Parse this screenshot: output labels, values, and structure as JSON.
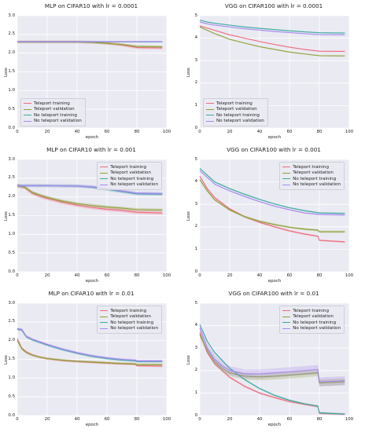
{
  "chart_data": [
    {
      "type": "line",
      "title": "MLP on CIFAR10 with lr = 0.0001",
      "xlabel": "epoch",
      "ylabel": "Loss",
      "xlim": [
        0,
        100
      ],
      "ylim": [
        0,
        3.0
      ],
      "xticks": [
        "0",
        "20",
        "40",
        "60",
        "80",
        "100"
      ],
      "yticks": [
        "0.0",
        "0.5",
        "1.0",
        "1.5",
        "2.0",
        "2.5",
        "3.0"
      ],
      "grid": true,
      "legend_position": "bottom-left",
      "series": [
        {
          "name": "Teleport training",
          "color": "#ef6b80",
          "x": [
            0,
            10,
            20,
            30,
            40,
            50,
            60,
            70,
            80,
            97
          ],
          "y": [
            2.3,
            2.3,
            2.3,
            2.3,
            2.3,
            2.29,
            2.27,
            2.22,
            2.15,
            2.14
          ],
          "band": 0.04
        },
        {
          "name": "Teleport validation",
          "color": "#8ea23a",
          "x": [
            0,
            10,
            20,
            30,
            40,
            50,
            60,
            70,
            80,
            97
          ],
          "y": [
            2.3,
            2.3,
            2.3,
            2.3,
            2.3,
            2.29,
            2.26,
            2.23,
            2.18,
            2.17
          ],
          "band": 0.03
        },
        {
          "name": "No teleport training",
          "color": "#3aa9a0",
          "x": [
            0,
            20,
            40,
            60,
            80,
            97
          ],
          "y": [
            2.3,
            2.3,
            2.3,
            2.3,
            2.3,
            2.3
          ],
          "band": 0.01
        },
        {
          "name": "No teleport validation",
          "color": "#a989ef",
          "x": [
            0,
            20,
            40,
            60,
            80,
            97
          ],
          "y": [
            2.31,
            2.31,
            2.31,
            2.31,
            2.31,
            2.31
          ],
          "band": 0.01
        }
      ]
    },
    {
      "type": "line",
      "title": "VGG on CIFAR100 with lr = 0.0001",
      "xlabel": "epoch",
      "ylabel": "Loss",
      "xlim": [
        0,
        100
      ],
      "ylim": [
        0,
        5
      ],
      "xticks": [
        "0",
        "20",
        "40",
        "60",
        "80",
        "100"
      ],
      "yticks": [
        "0",
        "1",
        "2",
        "3",
        "4",
        "5"
      ],
      "grid": true,
      "legend_position": "bottom-left",
      "series": [
        {
          "name": "Teleport training",
          "color": "#ef6b80",
          "x": [
            0,
            5,
            10,
            20,
            30,
            40,
            50,
            60,
            70,
            80,
            97
          ],
          "y": [
            4.55,
            4.45,
            4.35,
            4.15,
            4.0,
            3.85,
            3.72,
            3.6,
            3.5,
            3.42,
            3.41
          ],
          "band": 0.02
        },
        {
          "name": "Teleport validation",
          "color": "#8ea23a",
          "x": [
            0,
            5,
            10,
            20,
            30,
            40,
            50,
            60,
            70,
            80,
            97
          ],
          "y": [
            4.5,
            4.35,
            4.2,
            3.95,
            3.78,
            3.62,
            3.5,
            3.38,
            3.3,
            3.22,
            3.21
          ],
          "band": 0.02
        },
        {
          "name": "No teleport training",
          "color": "#3aa9a0",
          "x": [
            0,
            5,
            10,
            20,
            30,
            40,
            50,
            60,
            70,
            80,
            97
          ],
          "y": [
            4.8,
            4.72,
            4.66,
            4.58,
            4.5,
            4.44,
            4.38,
            4.33,
            4.28,
            4.24,
            4.23
          ],
          "band": 0.02
        },
        {
          "name": "No teleport validation",
          "color": "#a989ef",
          "x": [
            0,
            5,
            10,
            20,
            30,
            40,
            50,
            60,
            70,
            80,
            97
          ],
          "y": [
            4.72,
            4.64,
            4.58,
            4.5,
            4.42,
            4.36,
            4.3,
            4.25,
            4.2,
            4.16,
            4.15
          ],
          "band": 0.02
        }
      ]
    },
    {
      "type": "line",
      "title": "MLP on CIFAR10 with lr = 0.001",
      "xlabel": "epoch",
      "ylabel": "Loss",
      "xlim": [
        0,
        100
      ],
      "ylim": [
        0,
        3.0
      ],
      "xticks": [
        "0",
        "20",
        "40",
        "60",
        "80",
        "100"
      ],
      "yticks": [
        "0.0",
        "0.5",
        "1.0",
        "1.5",
        "2.0",
        "2.5",
        "3.0"
      ],
      "grid": true,
      "legend_position": "top-right",
      "series": [
        {
          "name": "Teleport training",
          "color": "#ef6b80",
          "x": [
            0,
            5,
            10,
            15,
            20,
            30,
            40,
            50,
            60,
            70,
            80,
            97
          ],
          "y": [
            2.3,
            2.25,
            2.1,
            2.02,
            1.96,
            1.86,
            1.78,
            1.72,
            1.67,
            1.64,
            1.59,
            1.57
          ],
          "band": 0.05
        },
        {
          "name": "Teleport validation",
          "color": "#8ea23a",
          "x": [
            0,
            5,
            10,
            15,
            20,
            30,
            40,
            50,
            60,
            70,
            80,
            97
          ],
          "y": [
            2.3,
            2.26,
            2.12,
            2.05,
            1.99,
            1.89,
            1.82,
            1.77,
            1.73,
            1.7,
            1.66,
            1.65
          ],
          "band": 0.04
        },
        {
          "name": "No teleport training",
          "color": "#3aa9a0",
          "x": [
            0,
            20,
            40,
            50,
            60,
            70,
            80,
            97
          ],
          "y": [
            2.3,
            2.3,
            2.29,
            2.26,
            2.2,
            2.14,
            2.08,
            2.07
          ],
          "band": 0.04
        },
        {
          "name": "No teleport validation",
          "color": "#a989ef",
          "x": [
            0,
            20,
            40,
            50,
            60,
            70,
            80,
            97
          ],
          "y": [
            2.3,
            2.3,
            2.29,
            2.27,
            2.22,
            2.16,
            2.1,
            2.09
          ],
          "band": 0.04
        }
      ]
    },
    {
      "type": "line",
      "title": "VGG on CIFAR100 with lr = 0.001",
      "xlabel": "epoch",
      "ylabel": "Loss",
      "xlim": [
        0,
        100
      ],
      "ylim": [
        0,
        5
      ],
      "xticks": [
        "0",
        "20",
        "40",
        "60",
        "80",
        "100"
      ],
      "yticks": [
        "0",
        "1",
        "2",
        "3",
        "4",
        "5"
      ],
      "grid": true,
      "legend_position": "top-right",
      "series": [
        {
          "name": "Teleport training",
          "color": "#ef6b80",
          "x": [
            0,
            5,
            10,
            20,
            30,
            40,
            50,
            60,
            70,
            79,
            80,
            97
          ],
          "y": [
            4.25,
            3.7,
            3.3,
            2.8,
            2.45,
            2.2,
            2.0,
            1.82,
            1.68,
            1.58,
            1.4,
            1.33
          ],
          "band": 0.04
        },
        {
          "name": "Teleport validation",
          "color": "#8ea23a",
          "x": [
            0,
            5,
            10,
            20,
            30,
            40,
            50,
            60,
            70,
            79,
            80,
            97
          ],
          "y": [
            4.1,
            3.6,
            3.2,
            2.75,
            2.45,
            2.25,
            2.1,
            1.98,
            1.9,
            1.85,
            1.78,
            1.78
          ],
          "band": 0.05
        },
        {
          "name": "No teleport training",
          "color": "#3aa9a0",
          "x": [
            0,
            5,
            10,
            20,
            30,
            40,
            50,
            60,
            70,
            80,
            97
          ],
          "y": [
            4.6,
            4.3,
            4.0,
            3.7,
            3.45,
            3.22,
            3.02,
            2.85,
            2.72,
            2.62,
            2.6
          ],
          "band": 0.03
        },
        {
          "name": "No teleport validation",
          "color": "#a989ef",
          "x": [
            0,
            5,
            10,
            20,
            30,
            40,
            50,
            60,
            70,
            80,
            97
          ],
          "y": [
            4.5,
            4.2,
            3.9,
            3.6,
            3.35,
            3.12,
            2.92,
            2.76,
            2.62,
            2.55,
            2.53
          ],
          "band": 0.03
        }
      ]
    },
    {
      "type": "line",
      "title": "MLP on CIFAR10 with lr = 0.01",
      "xlabel": "epoch",
      "ylabel": "Loss",
      "xlim": [
        0,
        100
      ],
      "ylim": [
        0,
        3.0
      ],
      "xticks": [
        "0",
        "20",
        "40",
        "60",
        "80",
        "100"
      ],
      "yticks": [
        "0.0",
        "0.5",
        "1.0",
        "1.5",
        "2.0",
        "2.5",
        "3.0"
      ],
      "grid": true,
      "legend_position": "top-right",
      "series": [
        {
          "name": "Teleport training",
          "color": "#ef6b80",
          "x": [
            0,
            3,
            6,
            10,
            15,
            20,
            30,
            40,
            50,
            60,
            70,
            79,
            80,
            97
          ],
          "y": [
            2.05,
            1.8,
            1.7,
            1.62,
            1.56,
            1.52,
            1.47,
            1.44,
            1.42,
            1.4,
            1.38,
            1.37,
            1.33,
            1.32
          ],
          "band": 0.03
        },
        {
          "name": "Teleport validation",
          "color": "#8ea23a",
          "x": [
            0,
            3,
            6,
            10,
            15,
            20,
            30,
            40,
            50,
            60,
            70,
            79,
            80,
            97
          ],
          "y": [
            2.0,
            1.78,
            1.68,
            1.61,
            1.56,
            1.52,
            1.48,
            1.45,
            1.43,
            1.41,
            1.39,
            1.38,
            1.36,
            1.36
          ],
          "band": 0.03
        },
        {
          "name": "No teleport training",
          "color": "#3aa9a0",
          "x": [
            0,
            3,
            6,
            10,
            20,
            30,
            40,
            50,
            60,
            70,
            79,
            80,
            97
          ],
          "y": [
            2.3,
            2.28,
            2.1,
            2.02,
            1.88,
            1.76,
            1.66,
            1.58,
            1.52,
            1.48,
            1.46,
            1.44,
            1.44
          ],
          "band": 0.03
        },
        {
          "name": "No teleport validation",
          "color": "#a989ef",
          "x": [
            0,
            3,
            6,
            10,
            20,
            30,
            40,
            50,
            60,
            70,
            79,
            80,
            97
          ],
          "y": [
            2.32,
            2.3,
            2.12,
            2.04,
            1.9,
            1.78,
            1.68,
            1.6,
            1.54,
            1.5,
            1.48,
            1.46,
            1.46
          ],
          "band": 0.03
        }
      ]
    },
    {
      "type": "line",
      "title": "VGG on CIFAR100 with lr = 0.01",
      "xlabel": "epoch",
      "ylabel": "Loss",
      "xlim": [
        0,
        100
      ],
      "ylim": [
        0,
        5
      ],
      "xticks": [
        "0",
        "20",
        "40",
        "60",
        "80",
        "100"
      ],
      "yticks": [
        "0",
        "1",
        "2",
        "3",
        "4",
        "5"
      ],
      "grid": true,
      "legend_position": "top-right",
      "series": [
        {
          "name": "Teleport training",
          "color": "#ef6b80",
          "x": [
            0,
            5,
            10,
            20,
            30,
            40,
            50,
            60,
            70,
            79,
            80,
            97
          ],
          "y": [
            3.7,
            2.8,
            2.3,
            1.7,
            1.3,
            1.0,
            0.8,
            0.62,
            0.5,
            0.4,
            0.1,
            0.06
          ],
          "band": 0.05
        },
        {
          "name": "Teleport validation",
          "color": "#8ea23a",
          "x": [
            0,
            5,
            10,
            15,
            20,
            30,
            40,
            50,
            60,
            70,
            79,
            80,
            97
          ],
          "y": [
            3.6,
            2.9,
            2.4,
            2.1,
            1.9,
            1.75,
            1.72,
            1.75,
            1.8,
            1.85,
            1.9,
            1.45,
            1.5
          ],
          "band": 0.15
        },
        {
          "name": "No teleport training",
          "color": "#3aa9a0",
          "x": [
            0,
            5,
            10,
            20,
            30,
            40,
            50,
            60,
            70,
            79,
            80,
            97
          ],
          "y": [
            4.05,
            3.3,
            2.8,
            2.1,
            1.6,
            1.2,
            0.9,
            0.68,
            0.52,
            0.42,
            0.12,
            0.06
          ],
          "band": 0.04
        },
        {
          "name": "No teleport validation",
          "color": "#a989ef",
          "x": [
            0,
            5,
            10,
            15,
            20,
            30,
            40,
            50,
            60,
            70,
            79,
            80,
            97
          ],
          "y": [
            3.9,
            3.0,
            2.5,
            2.2,
            2.0,
            1.85,
            1.85,
            1.9,
            1.95,
            2.0,
            2.05,
            1.5,
            1.55
          ],
          "band": 0.2
        }
      ]
    }
  ]
}
